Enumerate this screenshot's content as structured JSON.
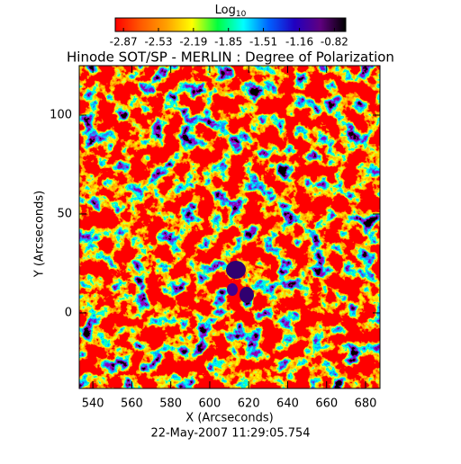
{
  "chart_data": {
    "type": "heatmap",
    "title": "Hinode SOT/SP - MERLIN : Degree of Polarization",
    "colorbar_label": "Log",
    "colorbar_label_sub": "10",
    "colorbar_ticks": [
      -2.87,
      -2.53,
      -2.19,
      -1.85,
      -1.51,
      -1.16,
      -0.82
    ],
    "clim": [
      -2.95,
      -0.71
    ],
    "colormap": [
      "#ff0000",
      "#ff5a00",
      "#ffa000",
      "#ffff00",
      "#00ff40",
      "#00ffff",
      "#0060ff",
      "#2000c0",
      "#600080",
      "#000000"
    ],
    "xlabel": "X (Arcseconds)",
    "ylabel": "Y (Arcseconds)",
    "xlim": [
      533,
      687.4
    ],
    "ylim": [
      -38.2,
      125
    ],
    "xticks": [
      540,
      560,
      580,
      600,
      620,
      640,
      660,
      680
    ],
    "yticks": [
      0,
      50,
      100
    ],
    "footer": "22-May-2007 11:29:05.754"
  }
}
